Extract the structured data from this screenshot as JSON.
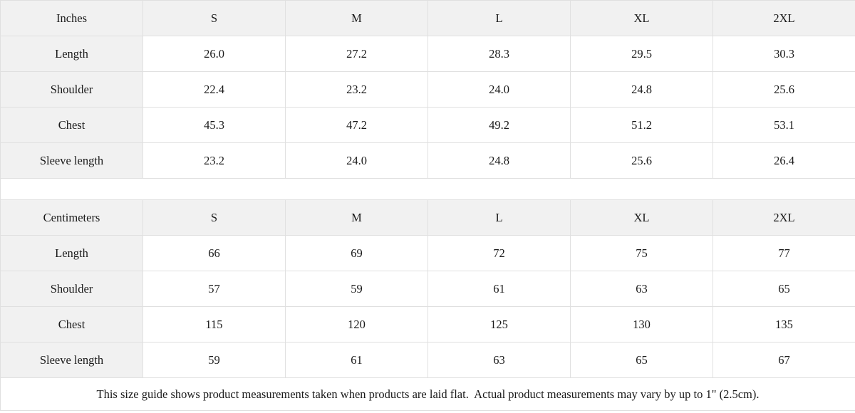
{
  "colors": {
    "header_bg": "#f1f1f1",
    "border": "#e0e0e0",
    "text": "#1a1a1a",
    "cell_bg": "#ffffff"
  },
  "tables": [
    {
      "unit_label": "Inches",
      "size_headers": [
        "S",
        "M",
        "L",
        "XL",
        "2XL"
      ],
      "rows": [
        {
          "label": "Length",
          "values": [
            "26.0",
            "27.2",
            "28.3",
            "29.5",
            "30.3"
          ]
        },
        {
          "label": "Shoulder",
          "values": [
            "22.4",
            "23.2",
            "24.0",
            "24.8",
            "25.6"
          ]
        },
        {
          "label": "Chest",
          "values": [
            "45.3",
            "47.2",
            "49.2",
            "51.2",
            "53.1"
          ]
        },
        {
          "label": "Sleeve length",
          "values": [
            "23.2",
            "24.0",
            "24.8",
            "25.6",
            "26.4"
          ]
        }
      ]
    },
    {
      "unit_label": "Centimeters",
      "size_headers": [
        "S",
        "M",
        "L",
        "XL",
        "2XL"
      ],
      "rows": [
        {
          "label": "Length",
          "values": [
            "66",
            "69",
            "72",
            "75",
            "77"
          ]
        },
        {
          "label": "Shoulder",
          "values": [
            "57",
            "59",
            "61",
            "63",
            "65"
          ]
        },
        {
          "label": "Chest",
          "values": [
            "115",
            "120",
            "125",
            "130",
            "135"
          ]
        },
        {
          "label": "Sleeve length",
          "values": [
            "59",
            "61",
            "63",
            "65",
            "67"
          ]
        }
      ]
    }
  ],
  "footer": {
    "note": "This size guide shows product measurements taken when products are laid flat.  Actual product measurements may vary by up to 1\" (2.5cm)."
  }
}
